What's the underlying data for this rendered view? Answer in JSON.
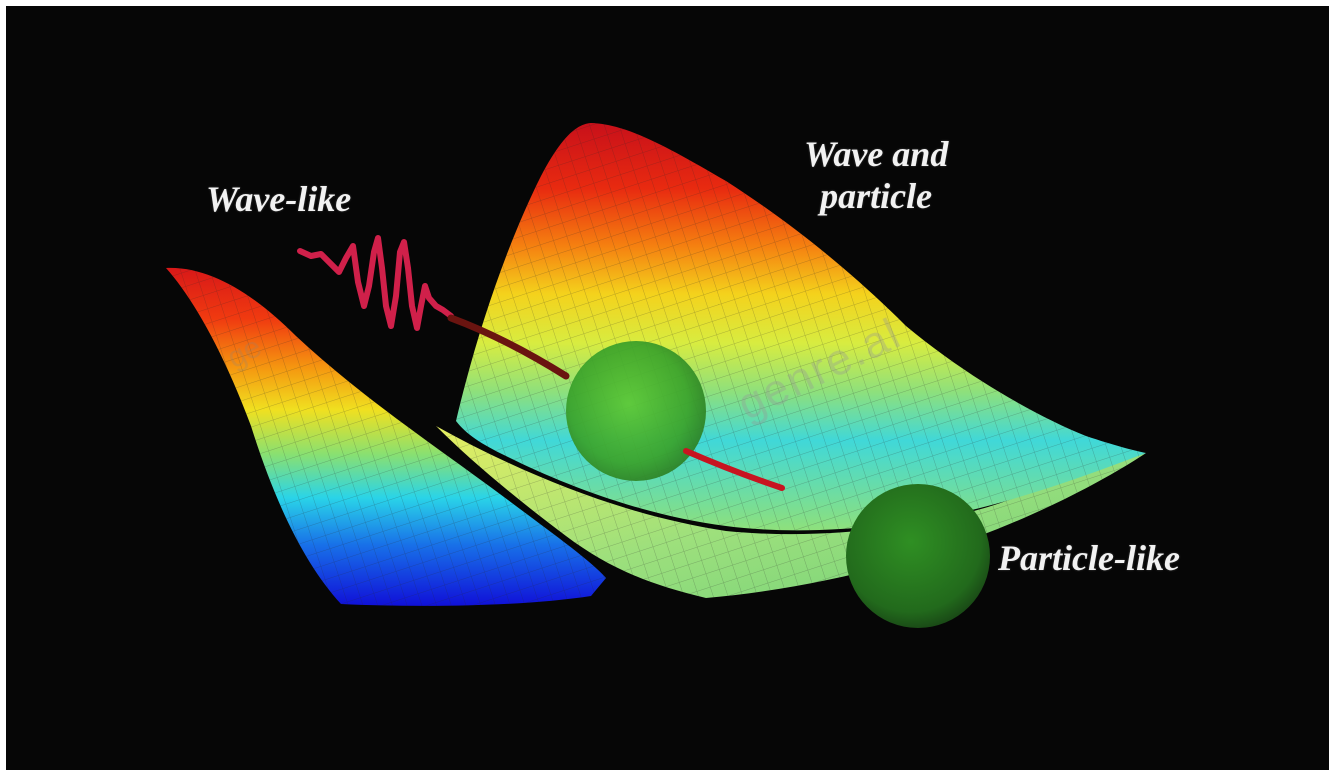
{
  "labels": {
    "wave_like": "Wave-like",
    "wave_and": "Wave and",
    "particle": "particle",
    "particle_like": "Particle-like"
  },
  "watermark": "genre.al",
  "watermark_left": "ge",
  "colors": {
    "background": "#060606",
    "surface_red": "#e01010",
    "surface_yellow": "#f0e020",
    "surface_green": "#7adf7a",
    "surface_cyan": "#2ad4e8",
    "surface_blue": "#1010e0",
    "wave_line": "#d0204a",
    "particle_green": "#2f8f23",
    "label_text": "#f2f2f2"
  }
}
